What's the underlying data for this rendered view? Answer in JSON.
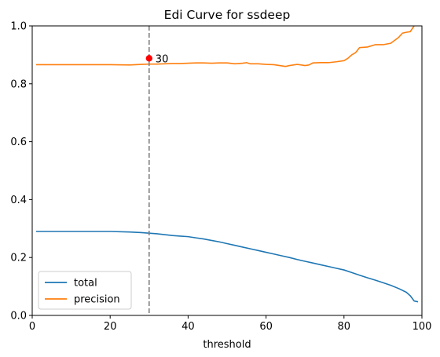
{
  "chart_data": {
    "type": "line",
    "title": "Edi Curve for ssdeep",
    "xlabel": "threshold",
    "ylabel": "",
    "xlim": [
      0,
      100
    ],
    "ylim": [
      0,
      1.0
    ],
    "xticks": [
      0,
      20,
      40,
      60,
      80,
      100
    ],
    "yticks": [
      0.0,
      0.2,
      0.4,
      0.6,
      0.8,
      1.0
    ],
    "xtick_labels": [
      "0",
      "20",
      "40",
      "60",
      "80",
      "100"
    ],
    "ytick_labels": [
      "0.0",
      "0.2",
      "0.4",
      "0.6",
      "0.8",
      "1.0"
    ],
    "grid": false,
    "legend_position": "lower-left",
    "series": [
      {
        "name": "total",
        "color": "#1f77b4",
        "x": [
          1,
          5,
          10,
          15,
          20,
          25,
          28,
          30,
          32,
          34,
          36,
          38,
          40,
          42,
          44,
          46,
          48,
          50,
          52,
          54,
          56,
          58,
          60,
          62,
          64,
          66,
          68,
          70,
          72,
          74,
          76,
          78,
          80,
          82,
          84,
          86,
          88,
          90,
          92,
          94,
          96,
          97,
          98,
          99
        ],
        "y": [
          0.29,
          0.29,
          0.29,
          0.29,
          0.29,
          0.288,
          0.286,
          0.284,
          0.282,
          0.279,
          0.276,
          0.274,
          0.272,
          0.268,
          0.264,
          0.259,
          0.254,
          0.248,
          0.242,
          0.236,
          0.23,
          0.224,
          0.218,
          0.212,
          0.206,
          0.2,
          0.193,
          0.187,
          0.181,
          0.175,
          0.169,
          0.163,
          0.157,
          0.148,
          0.139,
          0.13,
          0.122,
          0.113,
          0.104,
          0.093,
          0.08,
          0.068,
          0.05,
          0.047
        ]
      },
      {
        "name": "precision",
        "color": "#ff7f0e",
        "x": [
          1,
          5,
          10,
          15,
          20,
          25,
          28,
          30,
          32,
          34,
          36,
          38,
          40,
          42,
          44,
          46,
          48,
          50,
          52,
          54,
          55,
          56,
          58,
          60,
          62,
          64,
          65,
          66,
          68,
          70,
          71,
          72,
          74,
          76,
          78,
          80,
          81,
          82,
          83,
          84,
          86,
          88,
          90,
          92,
          94,
          95,
          96,
          97,
          98
        ],
        "y": [
          0.866,
          0.866,
          0.866,
          0.866,
          0.866,
          0.865,
          0.867,
          0.868,
          0.868,
          0.869,
          0.87,
          0.87,
          0.871,
          0.872,
          0.872,
          0.871,
          0.872,
          0.872,
          0.869,
          0.871,
          0.873,
          0.869,
          0.869,
          0.867,
          0.866,
          0.862,
          0.86,
          0.863,
          0.867,
          0.863,
          0.865,
          0.872,
          0.873,
          0.873,
          0.876,
          0.88,
          0.888,
          0.9,
          0.908,
          0.925,
          0.927,
          0.935,
          0.935,
          0.94,
          0.96,
          0.975,
          0.978,
          0.98,
          1.0
        ]
      }
    ],
    "annotations": [
      {
        "type": "vline",
        "x": 30,
        "color": "#808080",
        "style": "dashed"
      },
      {
        "type": "point",
        "x": 30,
        "y": 0.888,
        "color": "#ff0000",
        "label": "30"
      }
    ]
  }
}
